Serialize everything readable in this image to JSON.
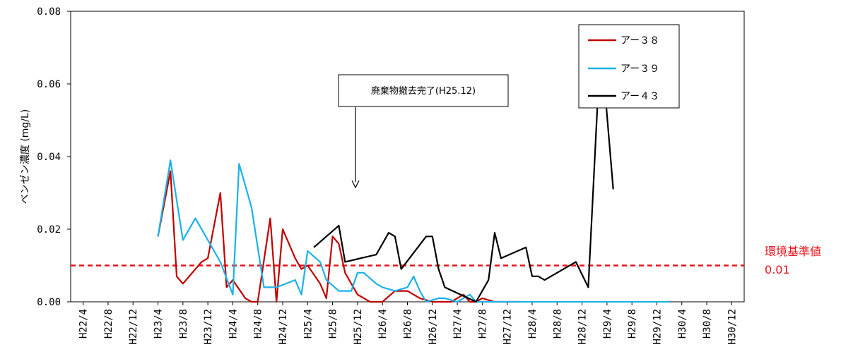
{
  "chart_data": {
    "type": "line",
    "ylabel": "ベンゼン濃度 (mg/L)",
    "ylim": [
      0,
      0.08
    ],
    "yticks": [
      "0.00",
      "0.02",
      "0.04",
      "0.06",
      "0.08"
    ],
    "ytick_values": [
      0,
      0.02,
      0.04,
      0.06,
      0.08
    ],
    "categories": [
      "H22/4",
      "H22/8",
      "H22/12",
      "H23/4",
      "H23/8",
      "H23/12",
      "H24/4",
      "H24/8",
      "H24/12",
      "H25/4",
      "H25/8",
      "H25/12",
      "H26/4",
      "H26/8",
      "H26/12",
      "H27/4",
      "H27/8",
      "H27/12",
      "H28/4",
      "H28/8",
      "H28/12",
      "H29/4",
      "H29/8",
      "H29/12",
      "H30/4",
      "H30/8",
      "H30/12"
    ],
    "legend_position": "top-right",
    "series": [
      {
        "name": "アー３８",
        "color": "#c00000",
        "points": [
          [
            3.0,
            0.018
          ],
          [
            3.5,
            0.036
          ],
          [
            3.75,
            0.007
          ],
          [
            4.0,
            0.005
          ],
          [
            4.5,
            0.009
          ],
          [
            4.75,
            0.011
          ],
          [
            5.0,
            0.012
          ],
          [
            5.5,
            0.03
          ],
          [
            5.75,
            0.004
          ],
          [
            6.0,
            0.006
          ],
          [
            6.5,
            0.001
          ],
          [
            6.75,
            0.0
          ],
          [
            7.0,
            0.0
          ],
          [
            7.5,
            0.023
          ],
          [
            7.75,
            0.0
          ],
          [
            8.0,
            0.02
          ],
          [
            8.5,
            0.012
          ],
          [
            8.75,
            0.009
          ],
          [
            9.0,
            0.01
          ],
          [
            9.5,
            0.005
          ],
          [
            9.75,
            0.001
          ],
          [
            10.0,
            0.018
          ],
          [
            10.25,
            0.016
          ],
          [
            10.5,
            0.008
          ],
          [
            10.75,
            0.005
          ],
          [
            11.0,
            0.002
          ],
          [
            11.5,
            0.0
          ],
          [
            11.75,
            0.0
          ],
          [
            12.0,
            0.0
          ],
          [
            12.5,
            0.003
          ],
          [
            12.75,
            0.003
          ],
          [
            13.0,
            0.003
          ],
          [
            13.5,
            0.001
          ],
          [
            14.0,
            0.0
          ],
          [
            14.5,
            0.0
          ],
          [
            14.75,
            0.0
          ],
          [
            15.0,
            0.001
          ],
          [
            15.25,
            0.002
          ],
          [
            15.5,
            0.0
          ],
          [
            15.75,
            0.0
          ],
          [
            16.0,
            0.001
          ],
          [
            16.5,
            0.0
          ],
          [
            17.0,
            0.0
          ],
          [
            17.5,
            0.0
          ]
        ]
      },
      {
        "name": "アー３９",
        "color": "#1ab2e8",
        "points": [
          [
            3.0,
            0.018
          ],
          [
            3.5,
            0.039
          ],
          [
            4.0,
            0.017
          ],
          [
            4.5,
            0.023
          ],
          [
            5.0,
            0.017
          ],
          [
            5.5,
            0.011
          ],
          [
            6.0,
            0.002
          ],
          [
            6.25,
            0.038
          ],
          [
            6.75,
            0.026
          ],
          [
            7.25,
            0.004
          ],
          [
            7.75,
            0.004
          ],
          [
            8.5,
            0.006
          ],
          [
            8.75,
            0.002
          ],
          [
            9.0,
            0.014
          ],
          [
            9.5,
            0.011
          ],
          [
            9.75,
            0.006
          ],
          [
            10.25,
            0.003
          ],
          [
            10.75,
            0.003
          ],
          [
            11.0,
            0.008
          ],
          [
            11.25,
            0.008
          ],
          [
            11.75,
            0.005
          ],
          [
            12.0,
            0.004
          ],
          [
            12.5,
            0.003
          ],
          [
            13.0,
            0.004
          ],
          [
            13.25,
            0.007
          ],
          [
            13.5,
            0.003
          ],
          [
            13.75,
            0.0
          ],
          [
            14.25,
            0.001
          ],
          [
            14.5,
            0.001
          ],
          [
            15.0,
            0.0
          ],
          [
            15.5,
            0.002
          ],
          [
            15.75,
            0.0
          ],
          [
            16.0,
            0.0
          ],
          [
            17.0,
            0.0
          ],
          [
            17.5,
            0.0
          ],
          [
            18.0,
            0.0
          ],
          [
            18.5,
            0.0
          ],
          [
            19.0,
            0.0
          ],
          [
            19.5,
            0.0
          ],
          [
            20.0,
            0.0
          ],
          [
            20.5,
            0.0
          ],
          [
            21.0,
            0.0
          ],
          [
            21.5,
            0.0
          ],
          [
            22.0,
            0.0
          ],
          [
            22.5,
            0.0
          ],
          [
            23.0,
            0.0
          ],
          [
            23.5,
            0.0
          ]
        ]
      },
      {
        "name": "アー４３",
        "color": "#000000",
        "points": [
          [
            9.25,
            0.015
          ],
          [
            10.25,
            0.021
          ],
          [
            10.5,
            0.011
          ],
          [
            11.75,
            0.013
          ],
          [
            12.25,
            0.019
          ],
          [
            12.5,
            0.018
          ],
          [
            12.75,
            0.009
          ],
          [
            13.75,
            0.018
          ],
          [
            14.0,
            0.018
          ],
          [
            14.25,
            0.009
          ],
          [
            14.5,
            0.004
          ],
          [
            15.75,
            0.0
          ],
          [
            16.25,
            0.006
          ],
          [
            16.5,
            0.019
          ],
          [
            16.75,
            0.012
          ],
          [
            17.75,
            0.015
          ],
          [
            18.0,
            0.007
          ],
          [
            18.25,
            0.007
          ],
          [
            18.5,
            0.006
          ],
          [
            19.75,
            0.011
          ],
          [
            20.25,
            0.004
          ],
          [
            20.75,
            0.072
          ],
          [
            21.25,
            0.031
          ]
        ]
      }
    ],
    "reference_line": {
      "value": 0.01,
      "label": "環境基準値",
      "value_label": "0.01",
      "color": "#e8141c"
    },
    "annotation": {
      "text": "廃棄物撤去完了(H25.12)"
    }
  }
}
